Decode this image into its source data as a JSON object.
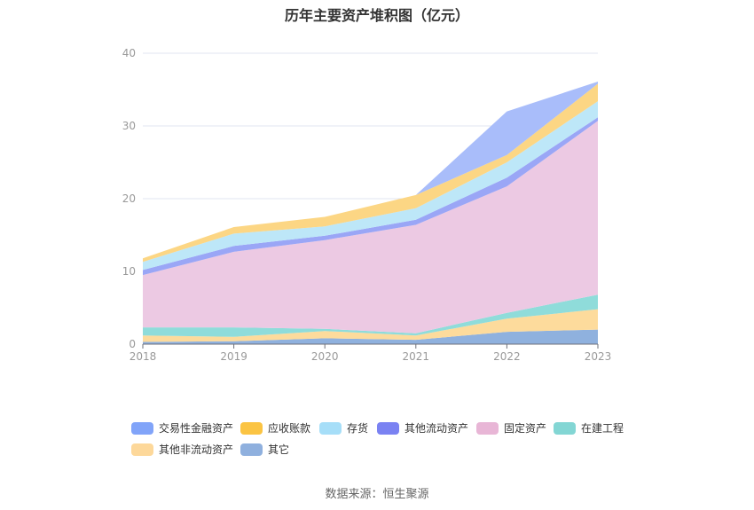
{
  "chart_data": {
    "type": "area",
    "title": "历年主要资产堆积图（亿元）",
    "xlabel": "",
    "ylabel": "",
    "ylim": [
      0,
      40
    ],
    "yticks": [
      "0",
      "10",
      "20",
      "30",
      "40"
    ],
    "categories": [
      "2018",
      "2019",
      "2020",
      "2021",
      "2022",
      "2023"
    ],
    "stacked": true,
    "grid": true,
    "legend_position": "bottom",
    "series": [
      {
        "name": "其它",
        "color": "#8fb1de",
        "values": [
          0.3,
          0.4,
          0.8,
          0.6,
          1.7,
          2.0
        ]
      },
      {
        "name": "其他非流动资产",
        "color": "#fddb9c",
        "values": [
          0.9,
          0.6,
          1.0,
          0.6,
          1.8,
          2.8
        ]
      },
      {
        "name": "在建工程",
        "color": "#8fdcda",
        "values": [
          1.1,
          1.3,
          0.3,
          0.3,
          0.8,
          2.0
        ]
      },
      {
        "name": "固定资产",
        "color": "#ecc9e3",
        "values": [
          7.2,
          10.4,
          12.2,
          14.9,
          17.4,
          23.9
        ]
      },
      {
        "name": "其他流动资产",
        "color": "#9aa6f6",
        "values": [
          0.7,
          0.8,
          0.6,
          0.7,
          1.2,
          0.5
        ]
      },
      {
        "name": "存货",
        "color": "#bde7f8",
        "values": [
          1.1,
          1.7,
          1.3,
          1.6,
          2.1,
          2.2
        ]
      },
      {
        "name": "应收账款",
        "color": "#fcd684",
        "values": [
          0.5,
          0.9,
          1.3,
          1.8,
          1.0,
          2.4
        ]
      },
      {
        "name": "交易性金融资产",
        "color": "#a9bdfa",
        "values": [
          0,
          0,
          0,
          0,
          6.0,
          0.3
        ]
      }
    ],
    "legend": [
      {
        "name": "交易性金融资产",
        "color": "#81a4f9"
      },
      {
        "name": "应收账款",
        "color": "#fbc443"
      },
      {
        "name": "存货",
        "color": "#a6def8"
      },
      {
        "name": "其他流动资产",
        "color": "#7a82f2"
      },
      {
        "name": "固定资产",
        "color": "#e8b6d6"
      },
      {
        "name": "在建工程",
        "color": "#83d6d4"
      },
      {
        "name": "其他非流动资产",
        "color": "#fdd89a"
      },
      {
        "name": "其它",
        "color": "#8fb0de"
      }
    ]
  },
  "source": "数据来源：恒生聚源"
}
